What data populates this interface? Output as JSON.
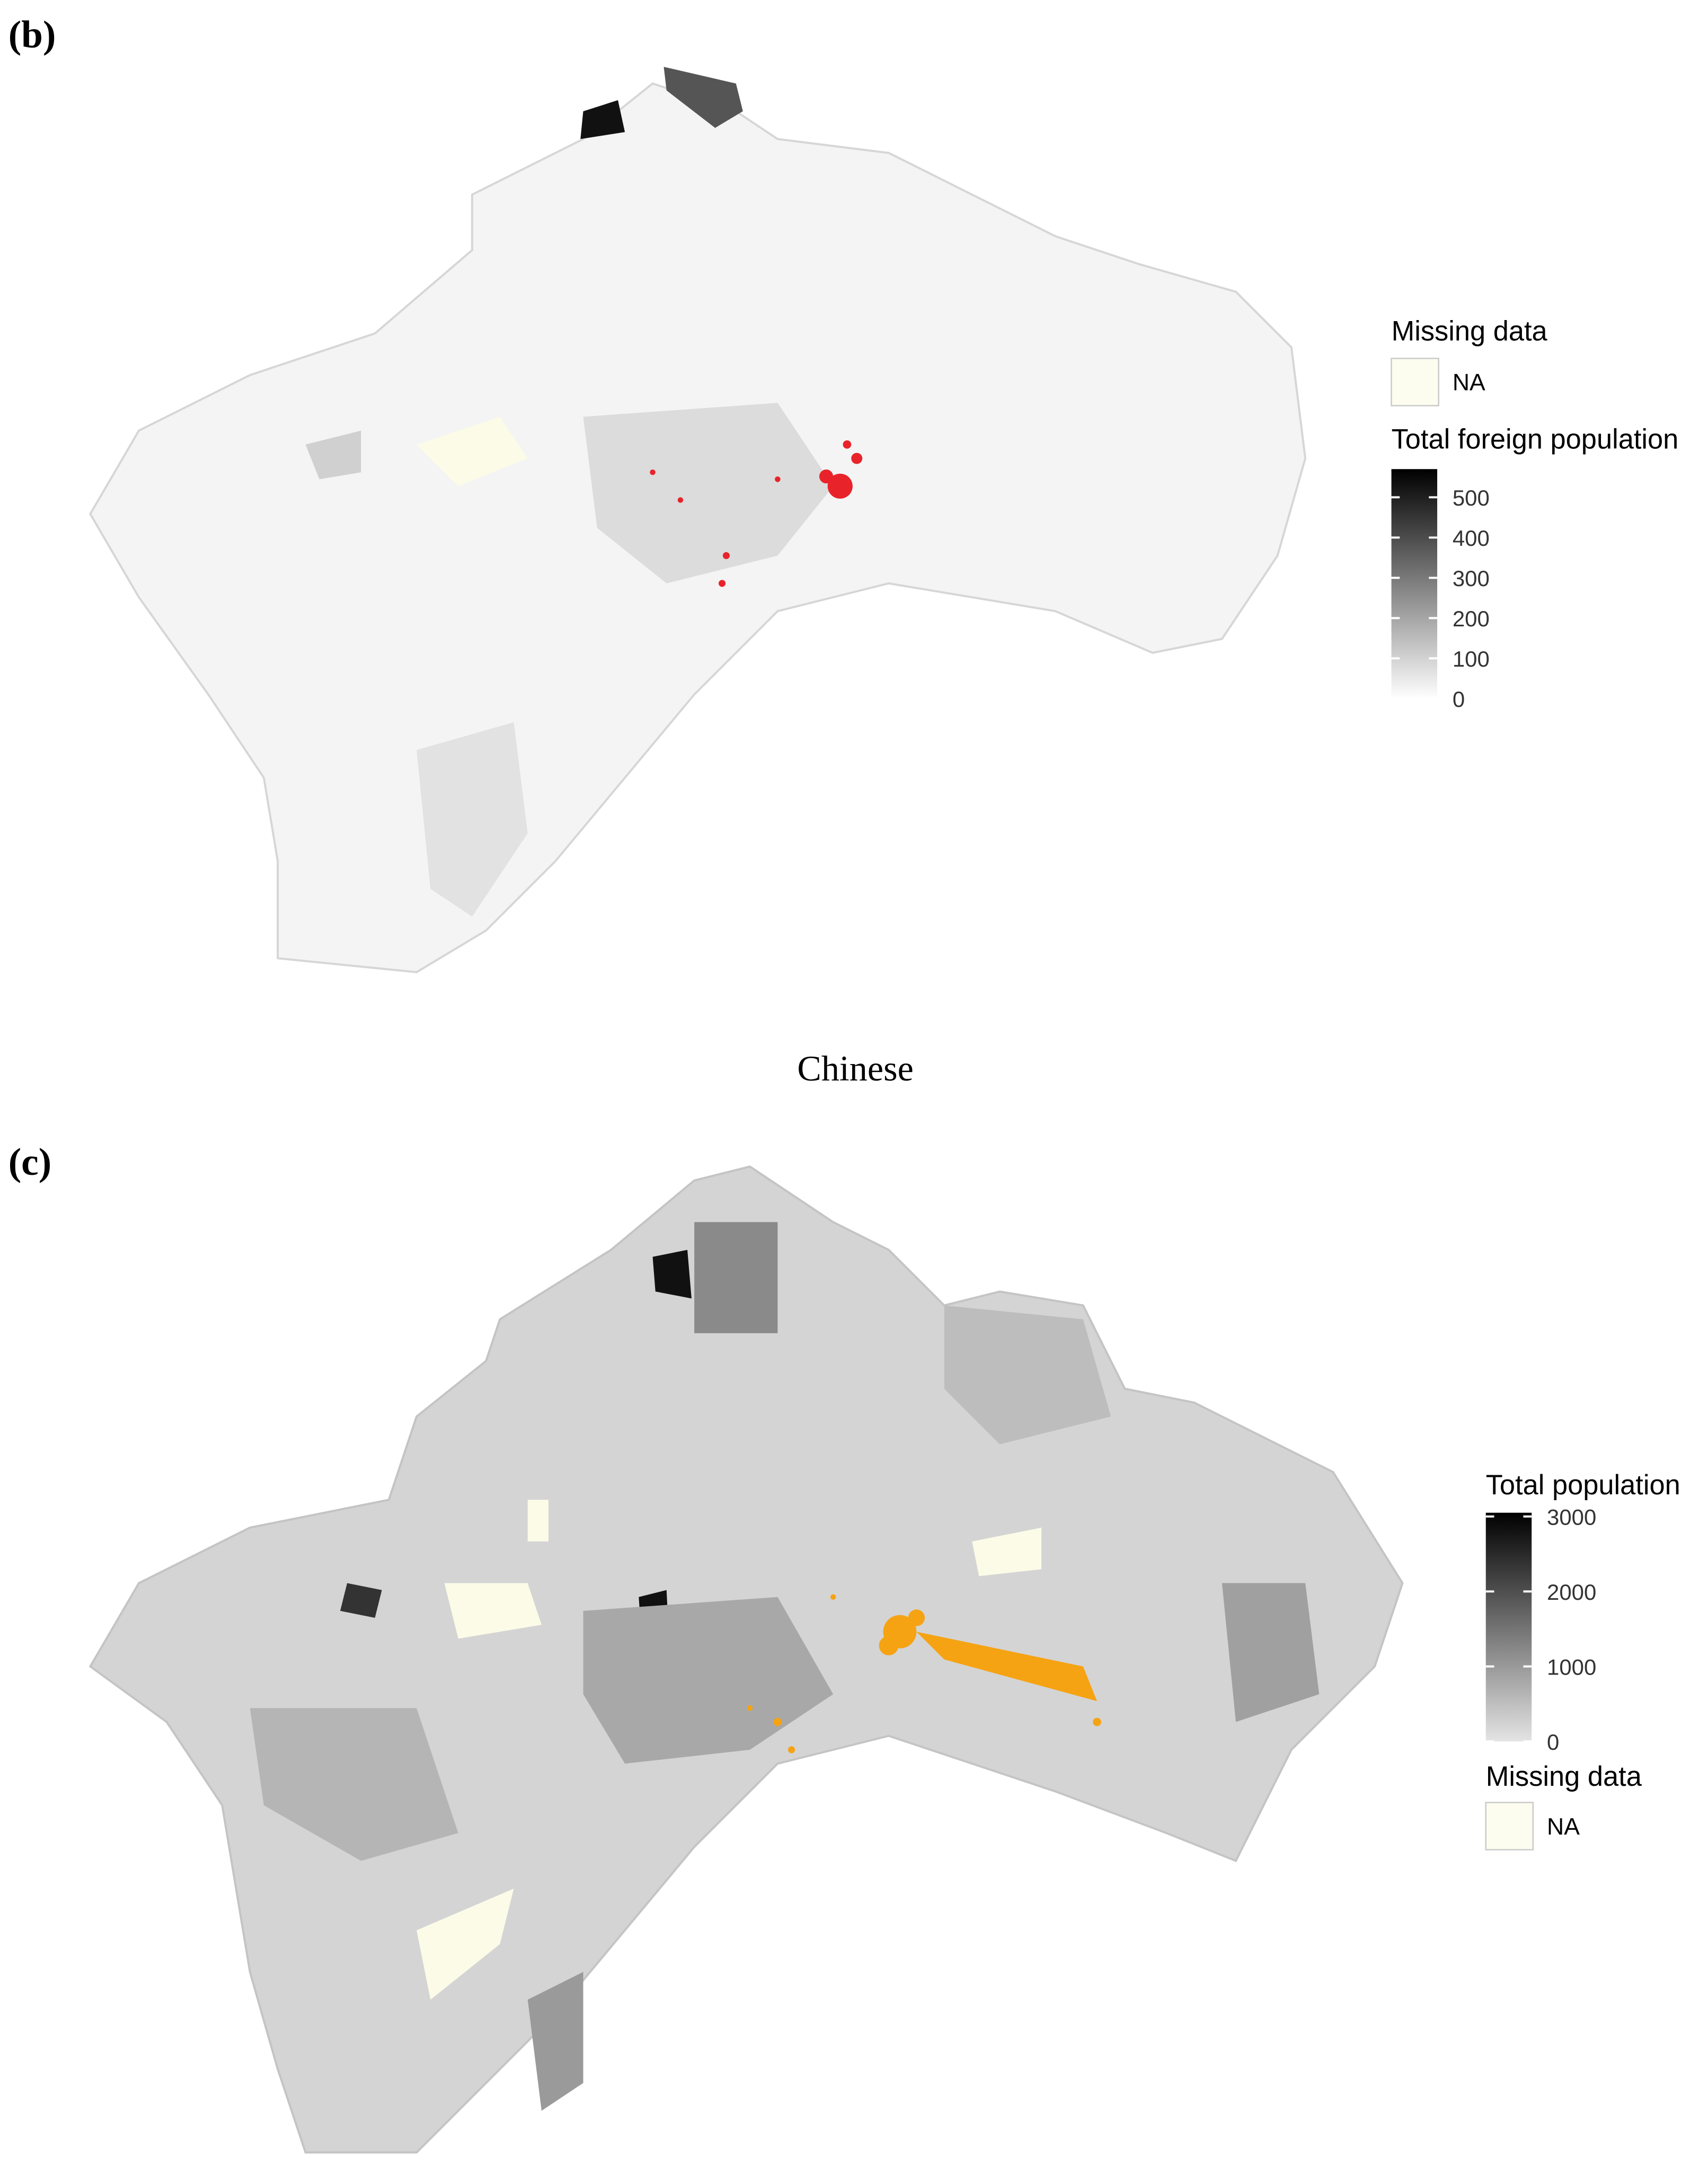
{
  "panel_b": {
    "label": "(b)",
    "legend": {
      "missing_title": "Missing data",
      "missing_label": "NA",
      "title": "Total foreign population",
      "lim": [
        0,
        570
      ],
      "ticks": [
        0,
        100,
        200,
        300,
        400,
        500
      ]
    }
  },
  "title": "Chinese",
  "panel_c": {
    "label": "(c)",
    "legend": {
      "title": "Total population",
      "lim": [
        0,
        3050
      ],
      "ticks": [
        0,
        1000,
        2000,
        3000
      ],
      "missing_title": "Missing data",
      "missing_label": "NA"
    }
  }
}
